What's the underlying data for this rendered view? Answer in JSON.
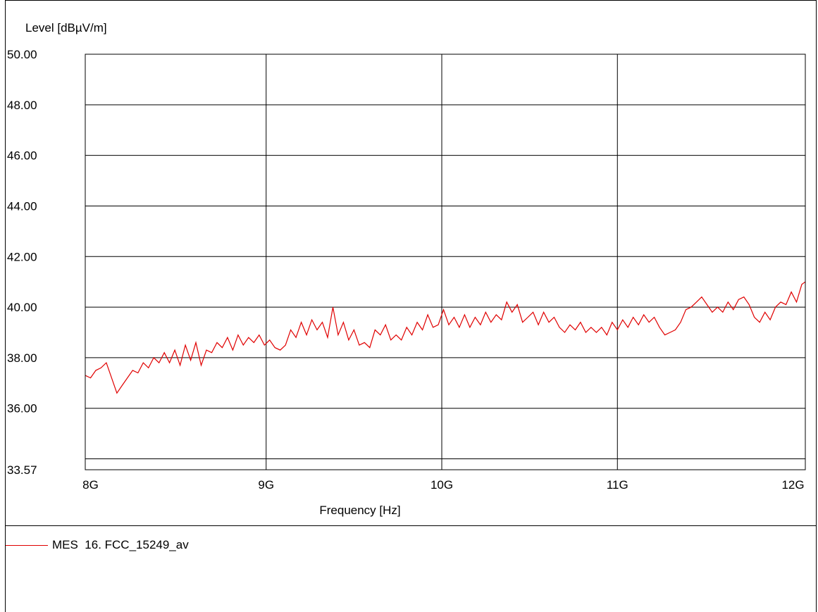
{
  "chart_data": {
    "type": "line",
    "title": "",
    "ylabel": "Level [dBµV/m]",
    "xlabel": "Frequency [Hz]",
    "ylim": [
      33.57,
      50.0
    ],
    "xlim": [
      7.97,
      12.07
    ],
    "y_ticks": [
      "50.00",
      "48.00",
      "46.00",
      "44.00",
      "42.00",
      "40.00",
      "38.00",
      "36.00",
      "33.57"
    ],
    "y_tick_values": [
      50,
      48,
      46,
      44,
      42,
      40,
      38,
      36,
      33.57
    ],
    "y_gridlines": [
      48,
      46,
      44,
      42,
      40,
      38,
      36,
      34
    ],
    "x_ticks": [
      "8G",
      "9G",
      "10G",
      "11G",
      "12G"
    ],
    "x_tick_values": [
      8,
      9,
      10,
      11,
      12
    ],
    "x_unit": "GHz",
    "grid": true,
    "legend_position": "bottom-left",
    "series": [
      {
        "name": "MES  16. FCC_15249_av",
        "color": "#e00000",
        "x": [
          7.97,
          8.0,
          8.03,
          8.06,
          8.09,
          8.12,
          8.15,
          8.18,
          8.21,
          8.24,
          8.27,
          8.3,
          8.33,
          8.36,
          8.39,
          8.42,
          8.45,
          8.48,
          8.51,
          8.54,
          8.57,
          8.6,
          8.63,
          8.66,
          8.69,
          8.72,
          8.75,
          8.78,
          8.81,
          8.84,
          8.87,
          8.9,
          8.93,
          8.96,
          8.99,
          9.02,
          9.05,
          9.08,
          9.11,
          9.14,
          9.17,
          9.2,
          9.23,
          9.26,
          9.29,
          9.32,
          9.35,
          9.38,
          9.41,
          9.44,
          9.47,
          9.5,
          9.53,
          9.56,
          9.59,
          9.62,
          9.65,
          9.68,
          9.71,
          9.74,
          9.77,
          9.8,
          9.83,
          9.86,
          9.89,
          9.92,
          9.95,
          9.98,
          10.01,
          10.04,
          10.07,
          10.1,
          10.13,
          10.16,
          10.19,
          10.22,
          10.25,
          10.28,
          10.31,
          10.34,
          10.37,
          10.4,
          10.43,
          10.46,
          10.49,
          10.52,
          10.55,
          10.58,
          10.61,
          10.64,
          10.67,
          10.7,
          10.73,
          10.76,
          10.79,
          10.82,
          10.85,
          10.88,
          10.91,
          10.94,
          10.97,
          11.0,
          11.03,
          11.06,
          11.09,
          11.12,
          11.15,
          11.18,
          11.21,
          11.24,
          11.27,
          11.3,
          11.33,
          11.36,
          11.39,
          11.42,
          11.45,
          11.48,
          11.51,
          11.54,
          11.57,
          11.6,
          11.63,
          11.66,
          11.69,
          11.72,
          11.75,
          11.78,
          11.81,
          11.84,
          11.87,
          11.9,
          11.93,
          11.96,
          11.99,
          12.02,
          12.05,
          12.07
        ],
        "values": [
          37.3,
          37.2,
          37.5,
          37.6,
          37.8,
          37.2,
          36.6,
          36.9,
          37.2,
          37.5,
          37.4,
          37.8,
          37.6,
          38.0,
          37.8,
          38.2,
          37.8,
          38.3,
          37.7,
          38.5,
          37.9,
          38.6,
          37.7,
          38.3,
          38.2,
          38.6,
          38.4,
          38.8,
          38.3,
          38.9,
          38.5,
          38.8,
          38.6,
          38.9,
          38.5,
          38.7,
          38.4,
          38.3,
          38.5,
          39.1,
          38.8,
          39.4,
          38.9,
          39.5,
          39.1,
          39.4,
          38.8,
          40.0,
          38.9,
          39.4,
          38.7,
          39.1,
          38.5,
          38.6,
          38.4,
          39.1,
          38.9,
          39.3,
          38.7,
          38.9,
          38.7,
          39.2,
          38.9,
          39.4,
          39.1,
          39.7,
          39.2,
          39.3,
          39.9,
          39.3,
          39.6,
          39.2,
          39.7,
          39.2,
          39.6,
          39.3,
          39.8,
          39.4,
          39.7,
          39.5,
          40.2,
          39.8,
          40.1,
          39.4,
          39.6,
          39.8,
          39.3,
          39.8,
          39.4,
          39.6,
          39.2,
          39.0,
          39.3,
          39.1,
          39.4,
          39.0,
          39.2,
          39.0,
          39.2,
          38.9,
          39.4,
          39.1,
          39.5,
          39.2,
          39.6,
          39.3,
          39.7,
          39.4,
          39.6,
          39.2,
          38.9,
          39.0,
          39.1,
          39.4,
          39.9,
          40.0,
          40.2,
          40.4,
          40.1,
          39.8,
          40.0,
          39.8,
          40.2,
          39.9,
          40.3,
          40.4,
          40.1,
          39.6,
          39.4,
          39.8,
          39.5,
          40.0,
          40.2,
          40.1,
          40.6,
          40.2,
          40.9,
          41.0
        ]
      }
    ]
  }
}
